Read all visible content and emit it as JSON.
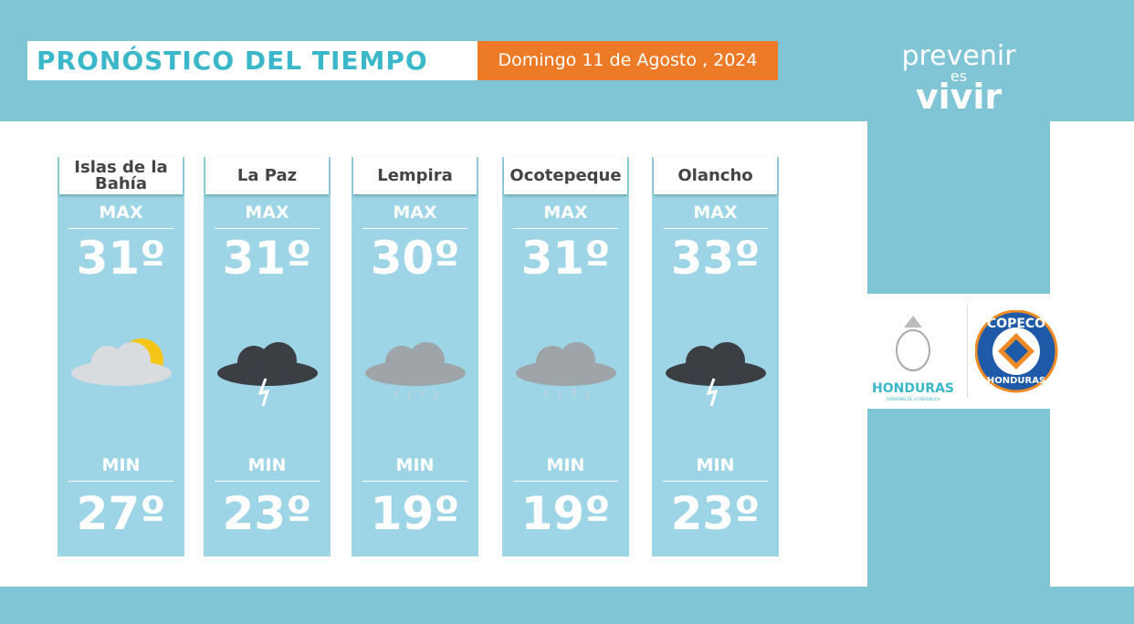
{
  "header": {
    "title": "PRONÓSTICO DEL TIEMPO",
    "date": "Domingo 11 de Agosto , 2024"
  },
  "brand": {
    "line1": "prevenir",
    "line2": "es",
    "line3": "vivir"
  },
  "logos": {
    "honduras": "HONDURAS",
    "honduras_sub": "GOBIERNO DE LA REPÚBLICA",
    "copeco": "COPECO",
    "copeco_sub": "HONDURAS"
  },
  "cards": [
    {
      "name": "Islas de la Bahía",
      "max_label": "MAX",
      "max": "31º",
      "min_label": "MIN",
      "min": "27º"
    },
    {
      "name": "La Paz",
      "max_label": "MAX",
      "max": "31º",
      "min_label": "MIN",
      "min": "23º"
    },
    {
      "name": "Lempira",
      "max_label": "MAX",
      "max": "30º",
      "min_label": "MIN",
      "min": "19º"
    },
    {
      "name": "Ocotepeque",
      "max_label": "MAX",
      "max": "31º",
      "min_label": "MIN",
      "min": "19º"
    },
    {
      "name": "Olancho",
      "max_label": "MAX",
      "max": "33º",
      "min_label": "MIN",
      "min": "23º"
    }
  ]
}
